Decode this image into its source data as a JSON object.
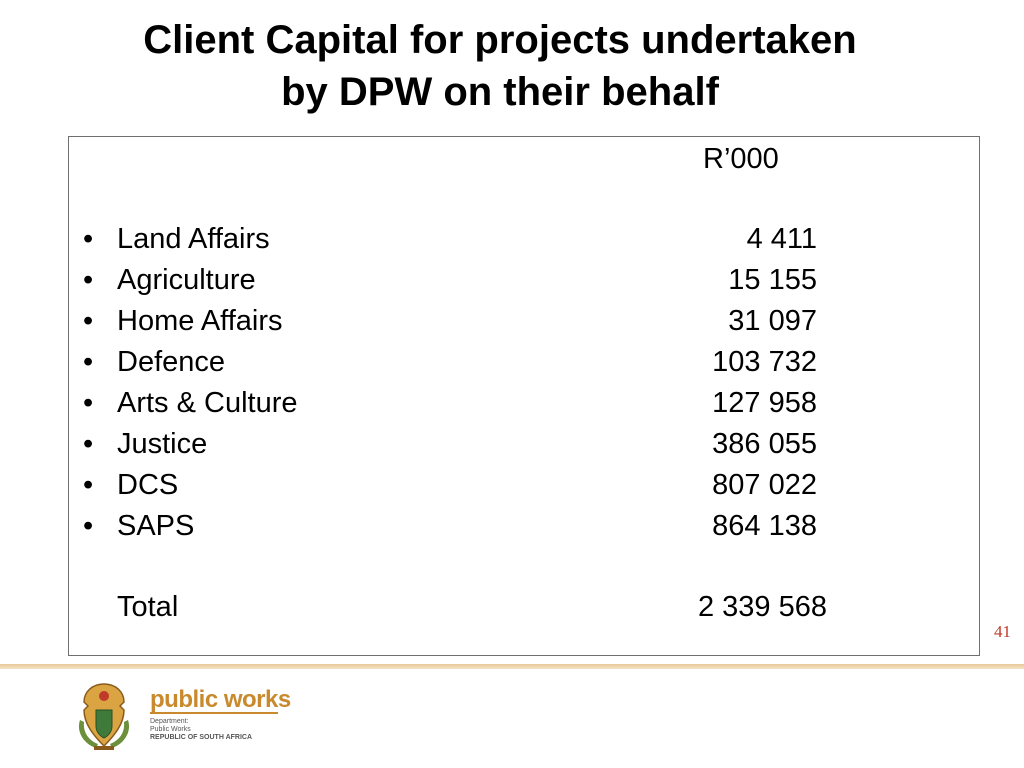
{
  "title": {
    "line1": "Client Capital for projects undertaken",
    "line2": "by DPW on their behalf"
  },
  "table": {
    "unit": "R’000",
    "rows": [
      {
        "bullet": "•",
        "label": "Land Affairs",
        "value": "4 411"
      },
      {
        "bullet": "•",
        "label": "Agriculture",
        "value": "15 155"
      },
      {
        "bullet": "•",
        "label": "Home Affairs",
        "value": "31 097"
      },
      {
        "bullet": "•",
        "label": "Defence",
        "value": "103 732"
      },
      {
        "bullet": "•",
        "label": "Arts & Culture",
        "value": "127 958"
      },
      {
        "bullet": "•",
        "label": "Justice",
        "value": "386 055"
      },
      {
        "bullet": "•",
        "label": "DCS",
        "value": "807 022"
      },
      {
        "bullet": "•",
        "label": "SAPS",
        "value": "864 138"
      }
    ],
    "total": {
      "label": "Total",
      "value": "2 339 568"
    }
  },
  "page_number": "41",
  "footer": {
    "brand": "public works",
    "line1": "Department:",
    "line2": "Public Works",
    "line3": "REPUBLIC OF SOUTH AFRICA",
    "brand_color": "#c98a2e"
  }
}
